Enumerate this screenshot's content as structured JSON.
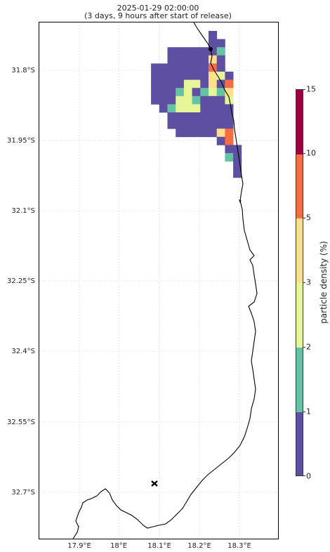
{
  "title": {
    "line1": "2025-01-29 02:00:00",
    "line2": "(3 days, 9 hours after start of release)"
  },
  "map": {
    "lon_ticks": [
      "17.9°E",
      "18°E",
      "18.1°E",
      "18.2°E",
      "18.3°E"
    ],
    "lat_ticks": [
      "31.8°S",
      "31.95°S",
      "32.1°S",
      "32.25°S",
      "32.4°S",
      "32.55°S",
      "32.7°S"
    ],
    "gridlines": true,
    "coastline_color": "#000000",
    "release_marker_icon": "x-cross-icon",
    "site_marker_icon": "dot-icon"
  },
  "colorbar": {
    "label": "particle density (%)",
    "ticks": [
      "0",
      "1",
      "2",
      "3",
      "5",
      "10",
      "15"
    ],
    "colors": [
      "#5e4fa2",
      "#66c2a5",
      "#e6f598",
      "#fee08b",
      "#f46d43",
      "#9e0142"
    ]
  },
  "density_grid": {
    "levels": [
      "#5e4fa2",
      "#66c2a5",
      "#e6f598",
      "#fee08b",
      "#f46d43"
    ],
    "rows": [
      {
        "r": 0,
        "cells": [
          [
            0,
            "V"
          ]
        ]
      },
      {
        "r": 1,
        "cells": [
          [
            0,
            "V"
          ],
          [
            1,
            "V"
          ]
        ]
      },
      {
        "r": 2,
        "cells": [
          [
            -5,
            "V"
          ],
          [
            -4,
            "V"
          ],
          [
            -3,
            "V"
          ],
          [
            -2,
            "V"
          ],
          [
            -1,
            "V"
          ],
          [
            0,
            "V"
          ],
          [
            1,
            "G"
          ]
        ]
      },
      {
        "r": 3,
        "cells": [
          [
            -5,
            "V"
          ],
          [
            -4,
            "V"
          ],
          [
            -3,
            "V"
          ],
          [
            -2,
            "V"
          ],
          [
            -1,
            "V"
          ],
          [
            0,
            "Y"
          ],
          [
            1,
            "V"
          ]
        ]
      },
      {
        "r": 4,
        "cells": [
          [
            -7,
            "V"
          ],
          [
            -6,
            "V"
          ],
          [
            -5,
            "V"
          ],
          [
            -4,
            "V"
          ],
          [
            -3,
            "V"
          ],
          [
            -2,
            "V"
          ],
          [
            -1,
            "V"
          ],
          [
            0,
            "O"
          ],
          [
            1,
            "V"
          ]
        ]
      },
      {
        "r": 5,
        "cells": [
          [
            -7,
            "V"
          ],
          [
            -6,
            "V"
          ],
          [
            -5,
            "V"
          ],
          [
            -4,
            "V"
          ],
          [
            -3,
            "V"
          ],
          [
            -2,
            "V"
          ],
          [
            -1,
            "V"
          ],
          [
            0,
            "Y"
          ],
          [
            1,
            "L"
          ],
          [
            2,
            "V"
          ]
        ]
      },
      {
        "r": 6,
        "cells": [
          [
            -7,
            "V"
          ],
          [
            -6,
            "V"
          ],
          [
            -5,
            "V"
          ],
          [
            -4,
            "V"
          ],
          [
            -3,
            "L"
          ],
          [
            -2,
            "L"
          ],
          [
            -1,
            "V"
          ],
          [
            0,
            "Y"
          ],
          [
            1,
            "V"
          ],
          [
            2,
            "O"
          ]
        ]
      },
      {
        "r": 7,
        "cells": [
          [
            -7,
            "V"
          ],
          [
            -6,
            "V"
          ],
          [
            -5,
            "V"
          ],
          [
            -4,
            "G"
          ],
          [
            -3,
            "L"
          ],
          [
            -2,
            "V"
          ],
          [
            -1,
            "G"
          ],
          [
            0,
            "L"
          ],
          [
            1,
            "G"
          ],
          [
            2,
            "Y"
          ]
        ]
      },
      {
        "r": 8,
        "cells": [
          [
            -7,
            "V"
          ],
          [
            -6,
            "V"
          ],
          [
            -5,
            "V"
          ],
          [
            -4,
            "L"
          ],
          [
            -3,
            "L"
          ],
          [
            -2,
            "G"
          ],
          [
            -1,
            "V"
          ],
          [
            0,
            "V"
          ],
          [
            1,
            "V"
          ],
          [
            2,
            "L"
          ]
        ]
      },
      {
        "r": 9,
        "cells": [
          [
            -6,
            "V"
          ],
          [
            -5,
            "G"
          ],
          [
            -4,
            "L"
          ],
          [
            -3,
            "L"
          ],
          [
            -2,
            "L"
          ],
          [
            -1,
            "V"
          ],
          [
            0,
            "V"
          ],
          [
            1,
            "V"
          ],
          [
            2,
            "V"
          ]
        ]
      },
      {
        "r": 10,
        "cells": [
          [
            -5,
            "V"
          ],
          [
            -4,
            "V"
          ],
          [
            -3,
            "V"
          ],
          [
            -2,
            "V"
          ],
          [
            -1,
            "V"
          ],
          [
            0,
            "V"
          ],
          [
            1,
            "V"
          ],
          [
            2,
            "V"
          ]
        ]
      },
      {
        "r": 11,
        "cells": [
          [
            -5,
            "V"
          ],
          [
            -4,
            "V"
          ],
          [
            -3,
            "V"
          ],
          [
            -2,
            "V"
          ],
          [
            -1,
            "V"
          ],
          [
            0,
            "V"
          ],
          [
            1,
            "V"
          ],
          [
            2,
            "V"
          ]
        ]
      },
      {
        "r": 12,
        "cells": [
          [
            -4,
            "V"
          ],
          [
            -3,
            "V"
          ],
          [
            -2,
            "V"
          ],
          [
            -1,
            "V"
          ],
          [
            0,
            "V"
          ],
          [
            1,
            "Y"
          ],
          [
            2,
            "O"
          ]
        ]
      },
      {
        "r": 13,
        "cells": [
          [
            1,
            "V"
          ],
          [
            2,
            "O"
          ]
        ]
      },
      {
        "r": 14,
        "cells": [
          [
            2,
            "V"
          ],
          [
            3,
            "V"
          ]
        ]
      },
      {
        "r": 15,
        "cells": [
          [
            2,
            "G"
          ],
          [
            3,
            "V"
          ]
        ]
      },
      {
        "r": 16,
        "cells": [
          [
            3,
            "V"
          ]
        ]
      },
      {
        "r": 17,
        "cells": [
          [
            3,
            "V"
          ]
        ]
      }
    ]
  }
}
